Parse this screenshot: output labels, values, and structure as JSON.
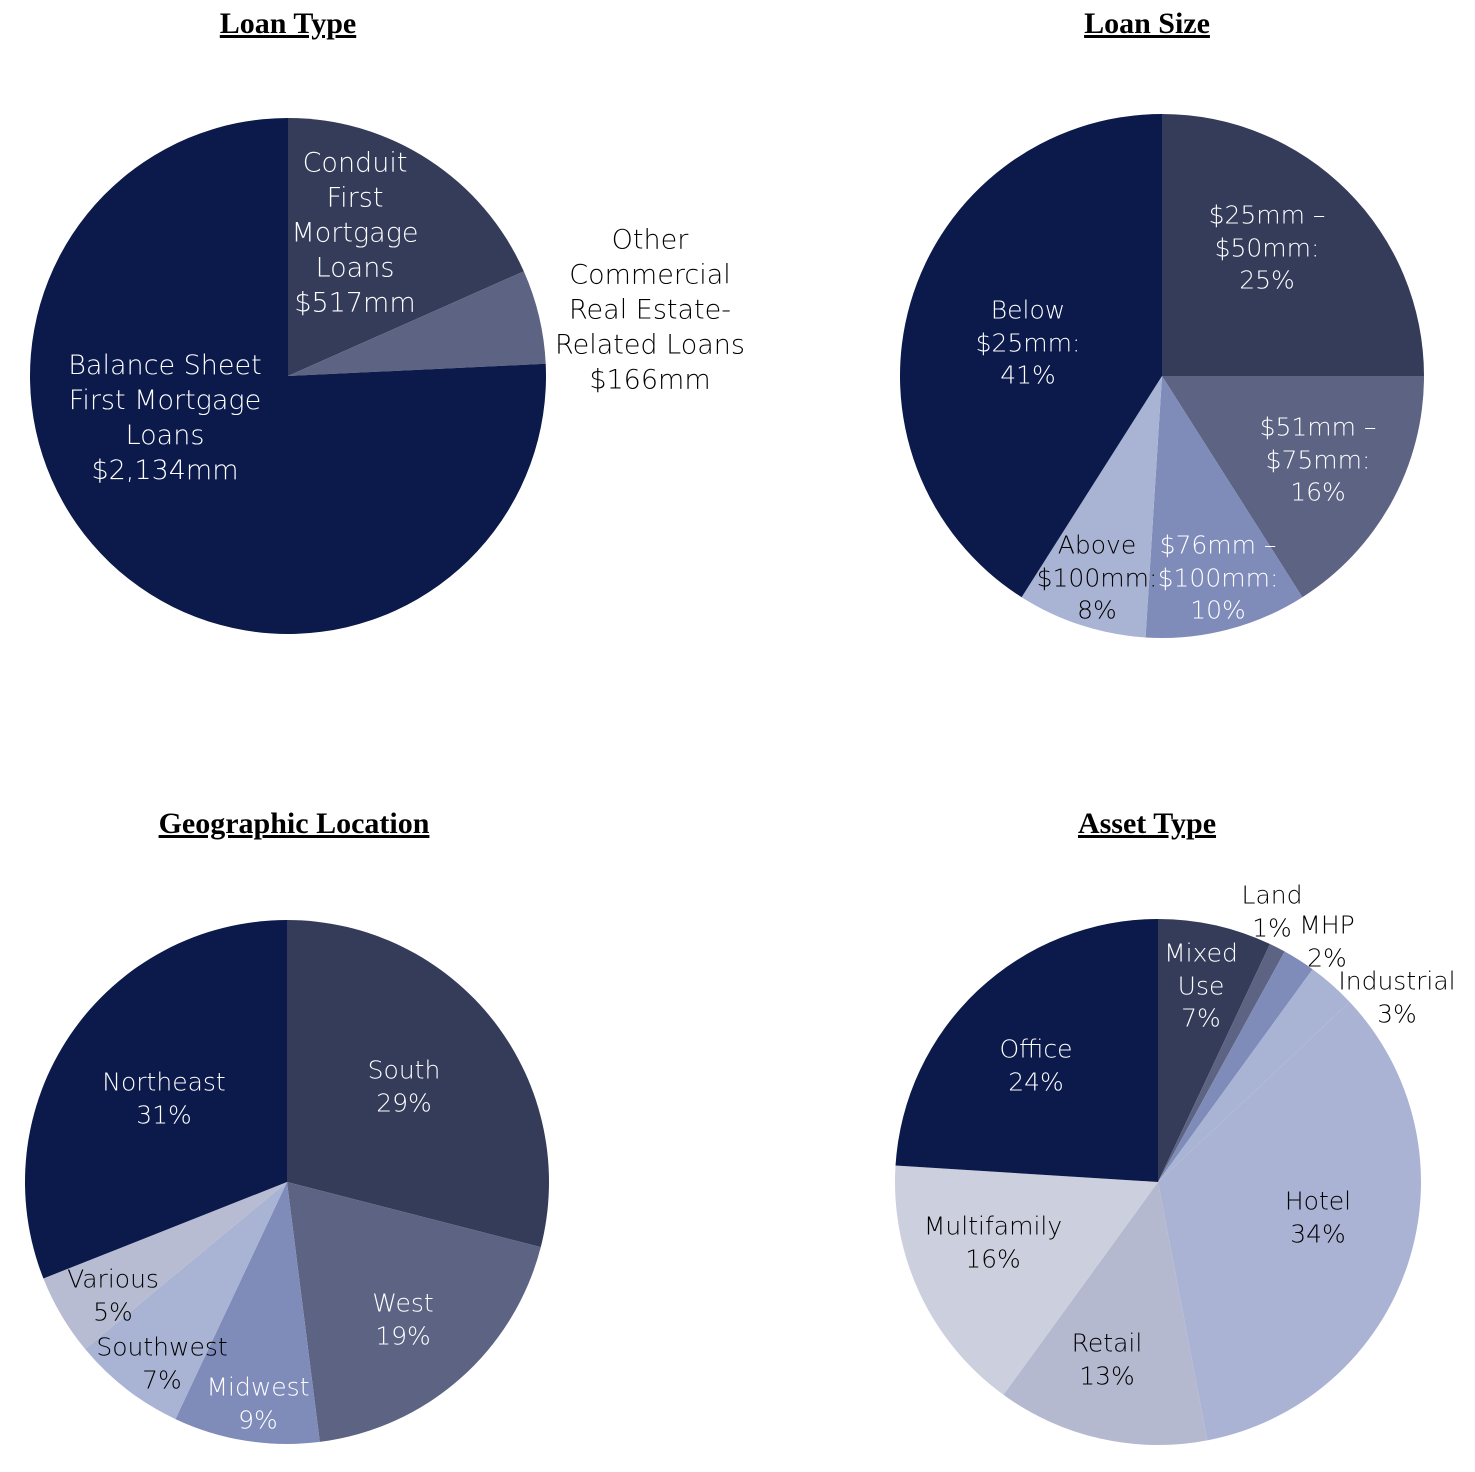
{
  "chart_data": [
    {
      "type": "pie",
      "title": "Loan Type",
      "categories": [
        "Conduit First Mortgage Loans",
        "Other Commercial Real Estate-Related Loans",
        "Balance Sheet First Mortgage Loans"
      ],
      "values": [
        517,
        166,
        2134
      ],
      "value_labels": [
        "$517mm",
        "$166mm",
        "$2,134mm"
      ],
      "colors": [
        "#343c5a",
        "#5c6383",
        "#0b1a4a"
      ]
    },
    {
      "type": "pie",
      "title": "Loan Size",
      "categories": [
        "$25mm – $50mm:",
        "$51mm – $75mm:",
        "$76mm – $100mm:",
        "Above $100mm:",
        "Below $25mm:"
      ],
      "values": [
        25,
        16,
        10,
        8,
        41
      ],
      "value_labels": [
        "25%",
        "16%",
        "10%",
        "8%",
        "41%"
      ],
      "colors": [
        "#343c5a",
        "#5c6383",
        "#7f8bb8",
        "#a9b4d4",
        "#0b1a4a"
      ]
    },
    {
      "type": "pie",
      "title": "Geographic Location",
      "categories": [
        "South",
        "West",
        "Midwest",
        "Southwest",
        "Various",
        "Northeast"
      ],
      "values": [
        29,
        19,
        9,
        7,
        5,
        31
      ],
      "value_labels": [
        "29%",
        "19%",
        "9%",
        "7%",
        "5%",
        "31%"
      ],
      "colors": [
        "#343c5a",
        "#5c6383",
        "#7f8bb8",
        "#a9b4d4",
        "#b8bcd2",
        "#0b1a4a"
      ]
    },
    {
      "type": "pie",
      "title": "Asset Type",
      "categories": [
        "Mixed Use",
        "Land",
        "MHP",
        "Industrial",
        "Hotel",
        "Retail",
        "Multifamily",
        "Office"
      ],
      "values": [
        7,
        1,
        2,
        3,
        34,
        13,
        16,
        24
      ],
      "value_labels": [
        "7%",
        "1%",
        "2%",
        "3%",
        "34%",
        "13%",
        "16%",
        "24%"
      ],
      "colors": [
        "#343c5a",
        "#5c6383",
        "#7f8bb8",
        "#a9b4d4",
        "#aab3d3",
        "#b5b9cf",
        "#cccfdd",
        "#0b1a4a"
      ]
    }
  ]
}
